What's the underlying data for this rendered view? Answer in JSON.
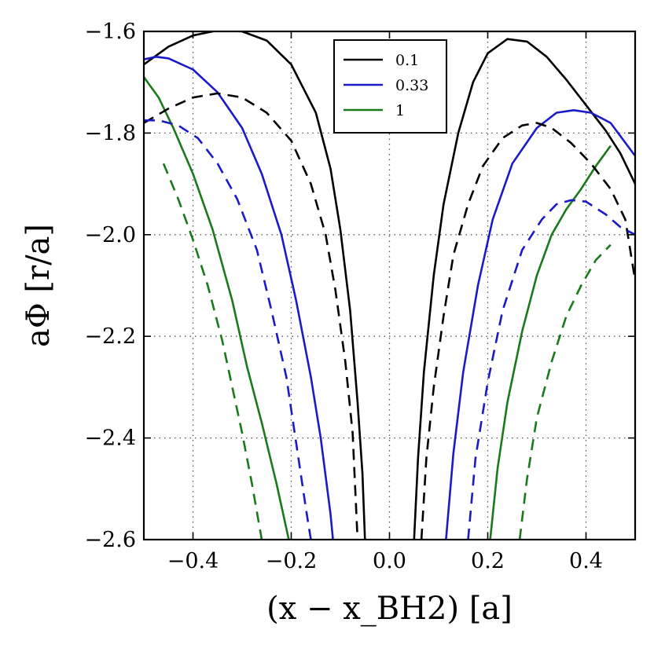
{
  "chart_data": {
    "type": "line",
    "xlabel": "(x − x_BH2) [a]",
    "ylabel": "aΦ [r/a]",
    "xlim": [
      -0.5,
      0.5
    ],
    "ylim": [
      -2.6,
      -1.6
    ],
    "xticks": [
      -0.4,
      -0.2,
      0.0,
      0.2,
      0.4
    ],
    "xtick_labels": [
      "−0.4",
      "−0.2",
      "0.0",
      "0.2",
      "0.4"
    ],
    "yticks": [
      -1.6,
      -1.8,
      -2.0,
      -2.2,
      -2.4,
      -2.6
    ],
    "ytick_labels": [
      "−1.6",
      "−1.8",
      "−2.0",
      "−2.2",
      "−2.4",
      "−2.6"
    ],
    "grid": true,
    "legend": {
      "placement": "top-center",
      "entries": [
        {
          "label": "0.1",
          "color": "#000000"
        },
        {
          "label": "0.33",
          "color": "#1a1ac8"
        },
        {
          "label": "1",
          "color": "#1a7a1a"
        }
      ]
    },
    "series": [
      {
        "name": "0.1",
        "color": "#000000",
        "dash": false,
        "segments": [
          [
            [
              -0.5,
              -1.665
            ],
            [
              -0.45,
              -1.63
            ],
            [
              -0.4,
              -1.608
            ],
            [
              -0.35,
              -1.598
            ],
            [
              -0.3,
              -1.6
            ],
            [
              -0.25,
              -1.618
            ],
            [
              -0.2,
              -1.665
            ],
            [
              -0.15,
              -1.76
            ],
            [
              -0.12,
              -1.87
            ],
            [
              -0.1,
              -1.99
            ],
            [
              -0.08,
              -2.15
            ],
            [
              -0.065,
              -2.33
            ],
            [
              -0.055,
              -2.47
            ],
            [
              -0.05,
              -2.6
            ]
          ],
          [
            [
              0.05,
              -2.6
            ],
            [
              0.058,
              -2.44
            ],
            [
              0.07,
              -2.27
            ],
            [
              0.09,
              -2.08
            ],
            [
              0.11,
              -1.94
            ],
            [
              0.14,
              -1.8
            ],
            [
              0.17,
              -1.7
            ],
            [
              0.2,
              -1.643
            ],
            [
              0.24,
              -1.615
            ],
            [
              0.28,
              -1.62
            ],
            [
              0.32,
              -1.65
            ],
            [
              0.36,
              -1.695
            ],
            [
              0.4,
              -1.745
            ],
            [
              0.44,
              -1.795
            ],
            [
              0.47,
              -1.84
            ],
            [
              0.5,
              -1.9
            ]
          ]
        ]
      },
      {
        "name": "0.33",
        "color": "#1a1ac8",
        "dash": false,
        "segments": [
          [
            [
              -0.5,
              -1.655
            ],
            [
              -0.475,
              -1.65
            ],
            [
              -0.45,
              -1.653
            ],
            [
              -0.4,
              -1.675
            ],
            [
              -0.35,
              -1.72
            ],
            [
              -0.3,
              -1.79
            ],
            [
              -0.26,
              -1.88
            ],
            [
              -0.22,
              -2.0
            ],
            [
              -0.19,
              -2.13
            ],
            [
              -0.16,
              -2.28
            ],
            [
              -0.14,
              -2.4
            ],
            [
              -0.12,
              -2.55
            ],
            [
              -0.115,
              -2.6
            ]
          ],
          [
            [
              0.115,
              -2.6
            ],
            [
              0.13,
              -2.43
            ],
            [
              0.15,
              -2.27
            ],
            [
              0.18,
              -2.1
            ],
            [
              0.21,
              -1.97
            ],
            [
              0.25,
              -1.86
            ],
            [
              0.3,
              -1.79
            ],
            [
              0.34,
              -1.76
            ],
            [
              0.375,
              -1.755
            ],
            [
              0.41,
              -1.76
            ],
            [
              0.45,
              -1.78
            ],
            [
              0.5,
              -1.845
            ]
          ]
        ]
      },
      {
        "name": "1",
        "color": "#1a7a1a",
        "dash": false,
        "segments": [
          [
            [
              -0.5,
              -1.69
            ],
            [
              -0.47,
              -1.73
            ],
            [
              -0.44,
              -1.79
            ],
            [
              -0.4,
              -1.88
            ],
            [
              -0.36,
              -1.99
            ],
            [
              -0.32,
              -2.13
            ],
            [
              -0.29,
              -2.26
            ],
            [
              -0.26,
              -2.37
            ],
            [
              -0.23,
              -2.49
            ],
            [
              -0.205,
              -2.6
            ]
          ],
          [
            [
              0.205,
              -2.6
            ],
            [
              0.22,
              -2.46
            ],
            [
              0.24,
              -2.33
            ],
            [
              0.27,
              -2.19
            ],
            [
              0.3,
              -2.08
            ],
            [
              0.33,
              -2.0
            ],
            [
              0.36,
              -1.95
            ],
            [
              0.39,
              -1.91
            ],
            [
              0.42,
              -1.865
            ],
            [
              0.45,
              -1.825
            ]
          ]
        ]
      },
      {
        "name": "0.1 (dashed)",
        "color": "#000000",
        "dash": true,
        "segments": [
          [
            [
              -0.5,
              -1.78
            ],
            [
              -0.45,
              -1.752
            ],
            [
              -0.4,
              -1.73
            ],
            [
              -0.35,
              -1.722
            ],
            [
              -0.3,
              -1.73
            ],
            [
              -0.25,
              -1.76
            ],
            [
              -0.2,
              -1.815
            ],
            [
              -0.16,
              -1.9
            ],
            [
              -0.13,
              -2.0
            ],
            [
              -0.11,
              -2.11
            ],
            [
              -0.09,
              -2.25
            ],
            [
              -0.075,
              -2.39
            ],
            [
              -0.065,
              -2.6
            ]
          ],
          [
            [
              0.065,
              -2.6
            ],
            [
              0.075,
              -2.44
            ],
            [
              0.09,
              -2.3
            ],
            [
              0.11,
              -2.16
            ],
            [
              0.13,
              -2.04
            ],
            [
              0.16,
              -1.94
            ],
            [
              0.19,
              -1.865
            ],
            [
              0.23,
              -1.81
            ],
            [
              0.27,
              -1.785
            ],
            [
              0.3,
              -1.78
            ],
            [
              0.33,
              -1.79
            ],
            [
              0.37,
              -1.82
            ],
            [
              0.41,
              -1.86
            ],
            [
              0.45,
              -1.91
            ],
            [
              0.48,
              -1.97
            ],
            [
              0.5,
              -2.09
            ]
          ]
        ]
      },
      {
        "name": "0.33 (dashed)",
        "color": "#1a1ac8",
        "dash": true,
        "segments": [
          [
            [
              -0.5,
              -1.775
            ],
            [
              -0.47,
              -1.775
            ],
            [
              -0.43,
              -1.785
            ],
            [
              -0.39,
              -1.81
            ],
            [
              -0.35,
              -1.86
            ],
            [
              -0.31,
              -1.93
            ],
            [
              -0.27,
              -2.03
            ],
            [
              -0.24,
              -2.15
            ],
            [
              -0.21,
              -2.28
            ],
            [
              -0.19,
              -2.41
            ],
            [
              -0.17,
              -2.54
            ],
            [
              -0.16,
              -2.6
            ]
          ],
          [
            [
              0.16,
              -2.6
            ],
            [
              0.175,
              -2.44
            ],
            [
              0.2,
              -2.29
            ],
            [
              0.23,
              -2.15
            ],
            [
              0.27,
              -2.03
            ],
            [
              0.31,
              -1.97
            ],
            [
              0.34,
              -1.94
            ],
            [
              0.37,
              -1.932
            ],
            [
              0.4,
              -1.935
            ],
            [
              0.44,
              -1.96
            ],
            [
              0.47,
              -1.985
            ],
            [
              0.5,
              -2.0
            ]
          ]
        ]
      },
      {
        "name": "1 (dashed)",
        "color": "#1a7a1a",
        "dash": true,
        "segments": [
          [
            [
              -0.46,
              -1.86
            ],
            [
              -0.43,
              -1.93
            ],
            [
              -0.4,
              -2.01
            ],
            [
              -0.37,
              -2.1
            ],
            [
              -0.34,
              -2.21
            ],
            [
              -0.32,
              -2.3
            ],
            [
              -0.3,
              -2.39
            ],
            [
              -0.28,
              -2.49
            ],
            [
              -0.26,
              -2.6
            ]
          ],
          [
            [
              0.265,
              -2.6
            ],
            [
              0.28,
              -2.48
            ],
            [
              0.3,
              -2.36
            ],
            [
              0.33,
              -2.25
            ],
            [
              0.36,
              -2.16
            ],
            [
              0.39,
              -2.1
            ],
            [
              0.42,
              -2.05
            ],
            [
              0.45,
              -2.02
            ]
          ]
        ]
      }
    ]
  }
}
